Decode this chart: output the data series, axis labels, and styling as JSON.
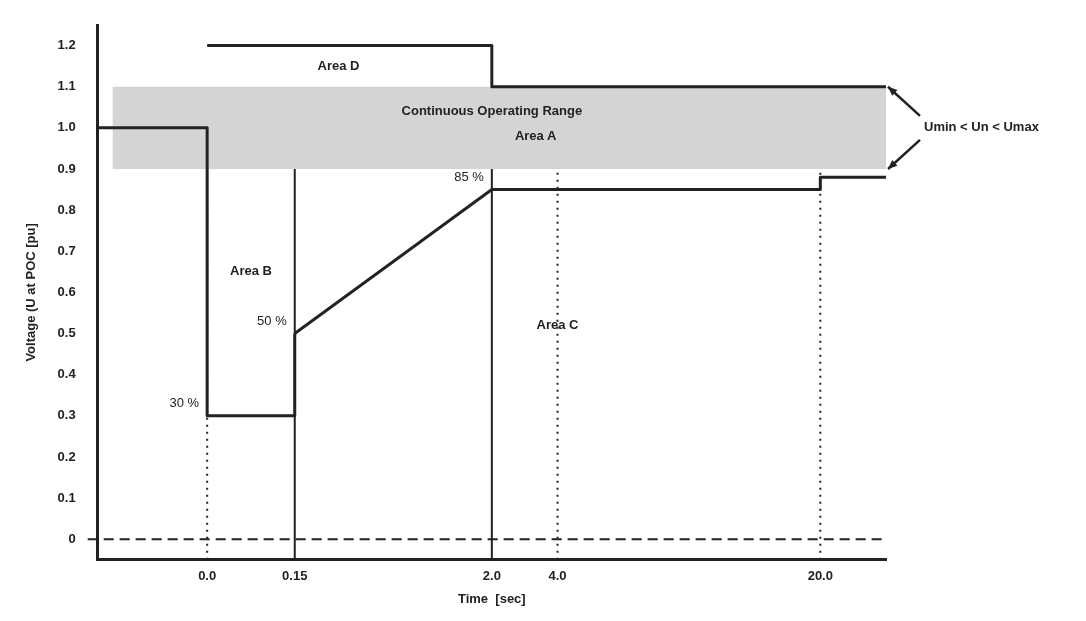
{
  "chart_data": {
    "type": "line",
    "xlabel": "Time  [sec]",
    "ylabel": "Voltage (U at POC [pu]",
    "categories": [
      null,
      null,
      null,
      null,
      null,
      "0.0",
      null,
      null,
      null,
      "0.15",
      null,
      null,
      null,
      null,
      null,
      null,
      null,
      null,
      "2.0",
      null,
      null,
      "4.0",
      null,
      null,
      null,
      null,
      null,
      null,
      null,
      null,
      null,
      null,
      null,
      "20.0",
      null,
      null,
      null
    ],
    "series": [
      {
        "type": "step",
        "color": "#222222",
        "values": [
          1.0,
          null,
          null,
          null,
          null,
          0.3,
          null,
          null,
          null,
          0.5,
          null,
          null,
          null,
          null,
          null,
          null,
          null,
          null,
          null,
          null,
          null,
          null,
          null,
          null,
          null,
          null,
          null,
          null,
          null,
          null,
          null,
          null,
          null,
          null,
          null,
          null,
          null
        ]
      },
      {
        "type": "line",
        "color": "#222222",
        "values": [
          null,
          null,
          null,
          null,
          null,
          null,
          null,
          null,
          null,
          0.5,
          null,
          null,
          null,
          null,
          null,
          null,
          null,
          null,
          0.85,
          null,
          null,
          null,
          null,
          null,
          null,
          null,
          null,
          null,
          null,
          null,
          null,
          null,
          null,
          null,
          null,
          null,
          null
        ]
      },
      {
        "type": "step",
        "color": "#222222",
        "values": [
          null,
          null,
          null,
          null,
          null,
          null,
          null,
          null,
          null,
          null,
          null,
          null,
          null,
          null,
          null,
          null,
          null,
          null,
          0.85,
          null,
          null,
          null,
          null,
          null,
          null,
          null,
          null,
          null,
          null,
          null,
          null,
          null,
          null,
          0.88,
          null,
          null,
          0.88
        ]
      },
      {
        "type": "step",
        "color": "#222222",
        "values": [
          null,
          null,
          null,
          null,
          null,
          1.2,
          null,
          null,
          null,
          null,
          null,
          null,
          null,
          null,
          null,
          null,
          null,
          null,
          1.1,
          null,
          null,
          null,
          null,
          null,
          null,
          null,
          null,
          null,
          null,
          null,
          null,
          null,
          null,
          null,
          null,
          null,
          1.1
        ]
      }
    ],
    "ylim": [
      -0.05,
      1.25
    ],
    "yticks": [
      0,
      {
        "value": 0.1,
        "label": "0.1"
      },
      {
        "value": 0.2,
        "label": "0.2"
      },
      {
        "value": 0.3,
        "label": "0.3"
      },
      {
        "value": 0.4,
        "label": "0.4"
      },
      {
        "value": 0.5,
        "label": "0.5"
      },
      {
        "value": 0.6,
        "label": "0.6"
      },
      {
        "value": 0.7,
        "label": "0.7"
      },
      {
        "value": 0.8,
        "label": "0.8"
      },
      {
        "value": 0.9,
        "label": "0.9"
      },
      {
        "value": 1,
        "label": "1.0"
      },
      {
        "value": 1.1,
        "label": "1.1"
      },
      {
        "value": 1.2,
        "label": "1.2"
      }
    ],
    "bands": [
      {
        "axis": "y",
        "from": 0.9,
        "to": 1.1,
        "color": "#d4d4d4"
      }
    ],
    "ref_lines": [
      {
        "axis": "y",
        "value": 0,
        "line_style": "dashed",
        "color": "#222222"
      },
      {
        "axis": "x",
        "value": "0.0",
        "line_style": "dotted",
        "color": "#222222"
      },
      {
        "axis": "x",
        "value": "0.15",
        "line_style": "solid",
        "color": "#222222"
      },
      {
        "axis": "x",
        "value": "2.0",
        "line_style": "solid",
        "color": "#222222"
      },
      {
        "axis": "x",
        "value": "4.0",
        "line_style": "dotted",
        "color": "#222222"
      },
      {
        "axis": "x",
        "value": "20.0",
        "line_style": "dotted",
        "color": "#222222"
      }
    ],
    "annotations": [
      "Area D",
      "Continuous Operating Range",
      "Area A",
      "Area B",
      "Area C",
      "Umin < Un < Umax",
      {
        "text": "30 %",
        "x": "0.0",
        "y": 0.3
      },
      {
        "text": "50 %",
        "x": "0.15",
        "y": 0.5
      },
      {
        "text": "85 %",
        "x": "2.0",
        "y": 0.85
      }
    ],
    "legend": false,
    "grid": false,
    "marker": "none",
    "line_style": "solid"
  }
}
